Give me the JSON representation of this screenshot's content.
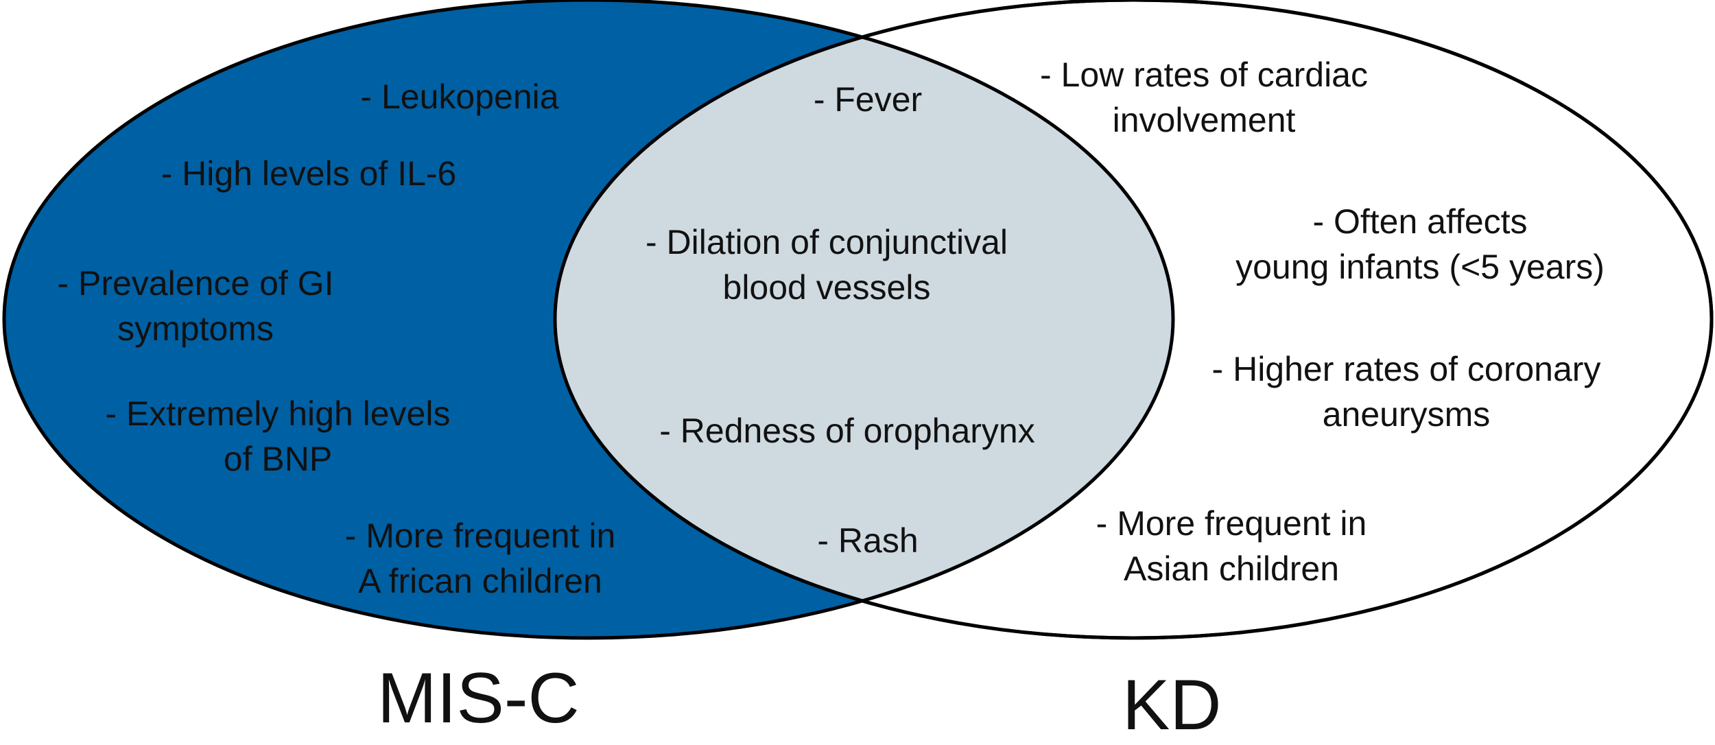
{
  "sets": {
    "left": {
      "label": "MIS-C",
      "fill": "#0060A4",
      "items": [
        "- Leukopenia",
        "- High levels of IL-6",
        "- Prevalence of GI\nsymptoms",
        "- Extremely high levels\nof BNP",
        "- More frequent in\nA frican children"
      ]
    },
    "right": {
      "label": "KD",
      "fill": "#ffffff",
      "items": [
        "- Low rates of cardiac\ninvolvement",
        "- Often affects\nyoung infants (<5 years)",
        "- Higher rates of coronary\naneurysms",
        "- More frequent in\nAsian children"
      ]
    },
    "overlap": {
      "fill": "#CFD9E0",
      "items": [
        "- Fever",
        "- Dilation of conjunctival\nblood vessels",
        "- Redness of oropharynx",
        "- Rash"
      ]
    }
  },
  "outline_color": "#000000"
}
